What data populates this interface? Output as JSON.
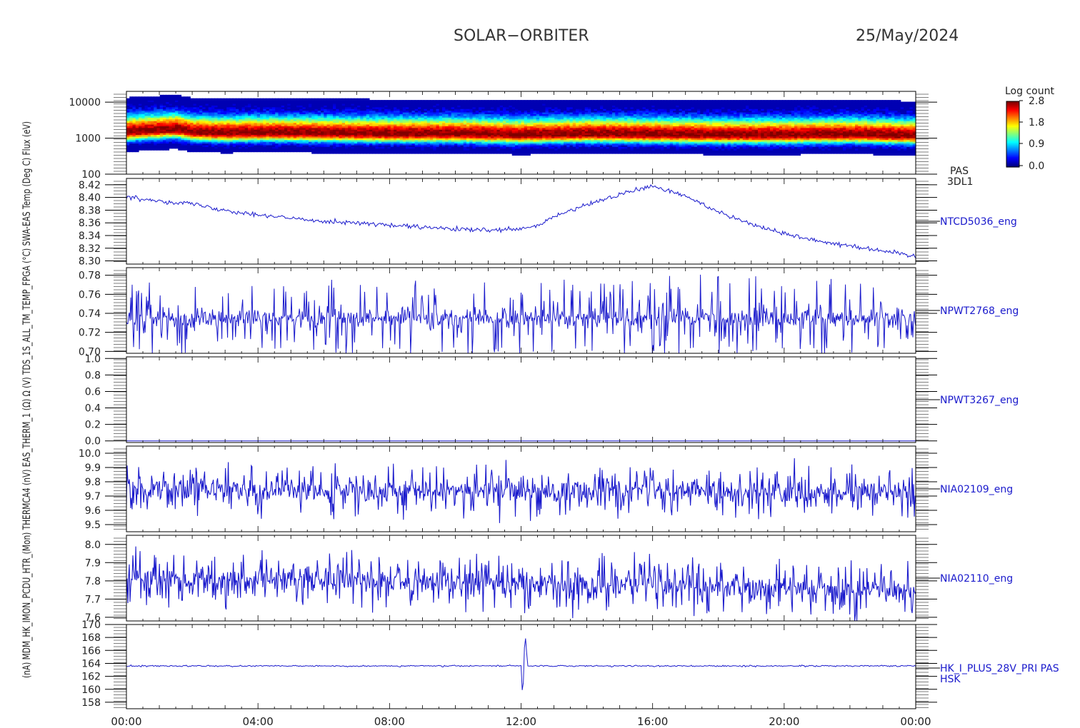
{
  "header": {
    "mission": "SOLAR−ORBITER",
    "date": "25/May/2024"
  },
  "left_axis_text": "(nA) MDM_HK_IMON_PCDU_HTR_(Mon) THERMCA4 (nV) EAS_THERM_1 (Ω) Ω (V) TDS_1S_ALL_TM_TEMP_FPGA (°C) SWA-EAS Temp (Deg C) Flux (eV)",
  "colorbar": {
    "title": "Log count",
    "ticks": [
      "2.8",
      "1.8",
      "0.9",
      "0.0"
    ]
  },
  "x_ticks": [
    "00:00",
    "04:00",
    "08:00",
    "12:00",
    "16:00",
    "20:00",
    "00:00"
  ],
  "chart_data": [
    {
      "type": "heatmap",
      "label": "PAS",
      "label2": "3DL1",
      "yscale": "log",
      "ylim": [
        100,
        20000
      ],
      "yticks": [
        "10000",
        "1000",
        "100"
      ],
      "core_energy": 1200,
      "x": [
        0,
        1,
        1.5,
        2,
        3,
        4,
        6,
        8,
        10,
        12,
        13,
        14,
        16,
        18,
        20,
        22,
        23,
        24
      ],
      "core_values": [
        1500,
        1700,
        1800,
        1500,
        1400,
        1450,
        1400,
        1350,
        1350,
        1250,
        1300,
        1350,
        1300,
        1250,
        1250,
        1300,
        1250,
        1200
      ]
    },
    {
      "type": "line",
      "label": "NTCD5036_eng",
      "ylim": [
        8.295,
        8.43
      ],
      "yticks": [
        "8.42",
        "8.40",
        "8.38",
        "8.36",
        "8.34",
        "8.32",
        "8.30"
      ],
      "x": [
        0,
        1,
        2,
        3,
        4,
        5,
        6,
        7,
        8,
        9,
        10,
        11,
        12,
        12.5,
        13,
        14,
        15,
        16,
        17,
        18,
        19,
        20,
        21,
        22,
        23,
        24
      ],
      "values": [
        8.4,
        8.395,
        8.39,
        8.38,
        8.373,
        8.367,
        8.363,
        8.36,
        8.356,
        8.353,
        8.35,
        8.348,
        8.35,
        8.355,
        8.37,
        8.388,
        8.405,
        8.418,
        8.402,
        8.378,
        8.358,
        8.343,
        8.332,
        8.324,
        8.316,
        8.307
      ]
    },
    {
      "type": "line",
      "label": "NPWT2768_eng",
      "ylim": [
        0.698,
        0.788
      ],
      "yticks": [
        "0.78",
        "0.76",
        "0.74",
        "0.72",
        "0.70"
      ],
      "x": [
        0,
        24
      ],
      "values": [
        0.735,
        0.735
      ]
    },
    {
      "type": "line",
      "label": "NPWT3267_eng",
      "ylim": [
        -0.02,
        1.02
      ],
      "yticks": [
        "1.0",
        "0.8",
        "0.6",
        "0.4",
        "0.2",
        "0.0"
      ],
      "x": [
        0,
        24
      ],
      "values": [
        0.0,
        0.0
      ]
    },
    {
      "type": "line",
      "label": "NIA02109_eng",
      "ylim": [
        9.45,
        10.05
      ],
      "yticks": [
        "10.0",
        "9.9",
        "9.8",
        "9.7",
        "9.6",
        "9.5"
      ],
      "x": [
        0,
        24
      ],
      "values": [
        9.75,
        9.72
      ]
    },
    {
      "type": "line",
      "label": "NIA02110_eng",
      "ylim": [
        7.58,
        8.05
      ],
      "yticks": [
        "8.0",
        "7.9",
        "7.8",
        "7.7",
        "7.6"
      ],
      "x": [
        0,
        24
      ],
      "values": [
        7.82,
        7.75
      ]
    },
    {
      "type": "line",
      "label": "HK_I_PLUS_28V_PRI PAS",
      "label2": "HSK",
      "ylim": [
        157,
        170
      ],
      "yticks": [
        "170",
        "168",
        "166",
        "164",
        "162",
        "160",
        "158"
      ],
      "x": [
        0,
        12,
        12.05,
        12.12,
        12.2,
        24
      ],
      "values": [
        163.6,
        163.6,
        158.2,
        169.0,
        163.6,
        163.6
      ]
    }
  ]
}
